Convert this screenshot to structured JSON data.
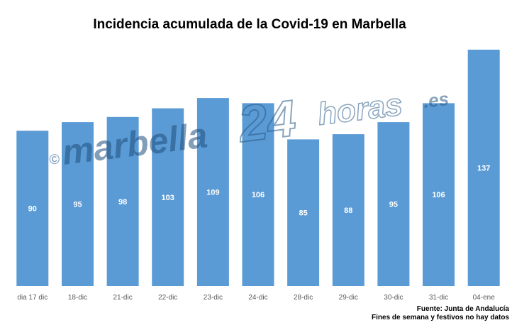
{
  "chart_data": {
    "type": "bar",
    "title": "Incidencia acumulada de la Covid-19 en Marbella",
    "categories": [
      "dia 17 dic",
      "18-dic",
      "21-dic",
      "22-dic",
      "23-dic",
      "24-dic",
      "28-dic",
      "29-dic",
      "30-dic",
      "31-dic",
      "04-ene"
    ],
    "values": [
      90,
      95,
      98,
      103,
      109,
      106,
      85,
      88,
      95,
      106,
      137
    ],
    "ylim": [
      0,
      150
    ],
    "grid": false,
    "legend": "none",
    "bar_color": "#5b9bd5",
    "label_color": "#ffffff"
  },
  "watermark": {
    "copyright": "©",
    "brand": "marbella",
    "number": "24",
    "suffix": "horas",
    "tld": ".es"
  },
  "footer": {
    "source": "Fuente: Junta de Andalucía",
    "note": "Fines de semana y festivos no hay datos"
  }
}
